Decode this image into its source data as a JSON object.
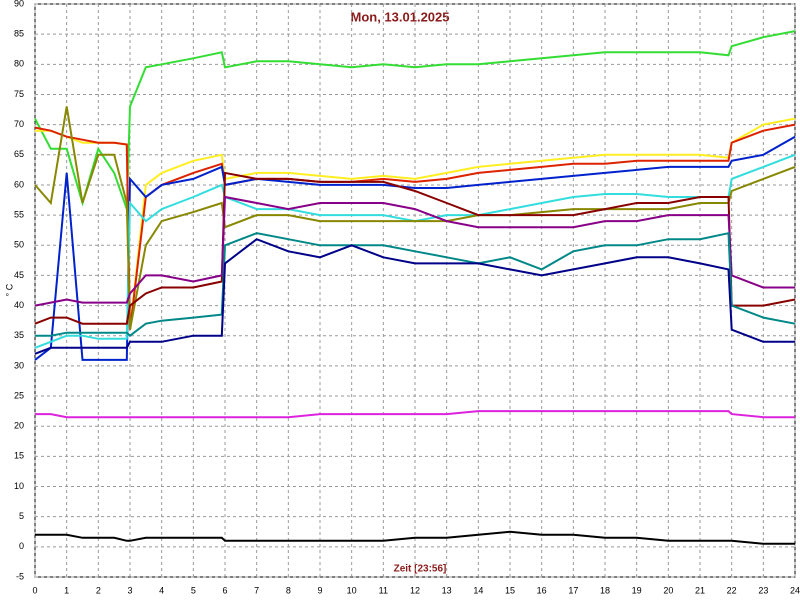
{
  "chart_data": {
    "type": "line",
    "title": "Mon, 13.01.2025",
    "y_label": "° C",
    "x_label": "Zeit [23:56]",
    "x": [
      0,
      0.5,
      1,
      1.5,
      2,
      2.5,
      2.9,
      3,
      3.5,
      4,
      5,
      5.9,
      6,
      7,
      8,
      9,
      10,
      11,
      12,
      13,
      14,
      15,
      16,
      17,
      18,
      19,
      20,
      21,
      21.9,
      22,
      23,
      24
    ],
    "series": [
      {
        "color": "#33dd33",
        "values": [
          71,
          66,
          66,
          57,
          66,
          62,
          56,
          73,
          79.5,
          80,
          81,
          82,
          79.5,
          80.5,
          80.5,
          80,
          79.5,
          80,
          79.5,
          80,
          80,
          80.5,
          81,
          81.5,
          82,
          82,
          82,
          82,
          81.5,
          83,
          84.5,
          85.5
        ]
      },
      {
        "color": "#ffee22",
        "values": [
          69,
          69,
          68,
          67,
          67,
          67,
          66.7,
          36,
          60,
          62,
          64,
          65,
          61,
          62,
          62,
          61.5,
          61,
          61.5,
          61,
          62,
          63,
          63.5,
          64,
          64.5,
          65,
          65,
          65,
          65,
          64.5,
          67,
          70,
          71
        ]
      },
      {
        "color": "#dd2200",
        "values": [
          69.5,
          69,
          68,
          67.5,
          67,
          67,
          66.7,
          36,
          58,
          60,
          62,
          63.5,
          60,
          61,
          61,
          60.5,
          60.5,
          61,
          60.5,
          61,
          62,
          62.5,
          63,
          63.5,
          63.5,
          64,
          64,
          64,
          64,
          67,
          69,
          70
        ]
      },
      {
        "color": "#0022cc",
        "values": [
          31,
          33,
          62,
          31,
          31,
          31,
          31,
          61,
          58,
          60,
          61,
          63,
          60,
          61,
          60.5,
          60,
          60,
          60,
          59.5,
          59.5,
          60,
          60.5,
          61,
          61.5,
          62,
          62.5,
          63,
          63,
          63,
          64,
          65,
          68
        ]
      },
      {
        "color": "#33dddd",
        "values": [
          33,
          34,
          35,
          35,
          34.5,
          34.5,
          34.5,
          57,
          54,
          56,
          58,
          60,
          58,
          56,
          56,
          55,
          55,
          55,
          54,
          55,
          55,
          56,
          57,
          58,
          58.5,
          58.5,
          58,
          58,
          58,
          61,
          63,
          65
        ]
      },
      {
        "color": "#888800",
        "values": [
          60,
          57,
          73,
          57,
          65,
          65,
          57,
          36,
          50,
          54,
          55.5,
          57,
          53,
          55,
          55,
          54,
          54,
          54,
          54,
          54,
          55,
          55,
          55.5,
          56,
          56,
          56,
          56,
          57,
          57,
          59,
          61,
          63
        ]
      },
      {
        "color": "#880000",
        "values": [
          37,
          38,
          38,
          37,
          37,
          37,
          37,
          40,
          42,
          43,
          43,
          44,
          62,
          61,
          61,
          60.5,
          60.5,
          60.5,
          59,
          57,
          55,
          55,
          55,
          55,
          56,
          57,
          57,
          58,
          58,
          40,
          40,
          41
        ]
      },
      {
        "color": "#880088",
        "values": [
          40,
          40.5,
          41,
          40.5,
          40.5,
          40.5,
          40.5,
          42,
          45,
          45,
          44,
          45,
          58,
          57,
          56,
          57,
          57,
          57,
          56,
          54,
          53,
          53,
          53,
          53,
          54,
          54,
          55,
          55,
          55,
          45,
          43,
          43
        ]
      },
      {
        "color": "#008888",
        "values": [
          35,
          35,
          35.5,
          35.5,
          35.5,
          35.5,
          35.5,
          35,
          37,
          37.5,
          38,
          38.5,
          50,
          52,
          51,
          50,
          50,
          50,
          49,
          48,
          47,
          48,
          46,
          49,
          50,
          50,
          51,
          51,
          52,
          40,
          38,
          37
        ]
      },
      {
        "color": "#000088",
        "values": [
          32,
          33,
          33,
          33,
          33,
          33,
          33,
          34,
          34,
          34,
          35,
          35,
          47,
          51,
          49,
          48,
          50,
          48,
          47,
          47,
          47,
          46,
          45,
          46,
          47,
          48,
          48,
          47,
          46,
          36,
          34,
          34
        ]
      },
      {
        "color": "#dd22dd",
        "values": [
          22,
          22,
          21.5,
          21.5,
          21.5,
          21.5,
          21.5,
          21.5,
          21.5,
          21.5,
          21.5,
          21.5,
          21.5,
          21.5,
          21.5,
          22,
          22,
          22,
          22,
          22,
          22.5,
          22.5,
          22.5,
          22.5,
          22.5,
          22.5,
          22.5,
          22.5,
          22.5,
          22,
          21.5,
          21.5
        ]
      },
      {
        "color": "#000000",
        "values": [
          2,
          2,
          2,
          1.5,
          1.5,
          1.5,
          1,
          1,
          1.5,
          1.5,
          1.5,
          1.5,
          1,
          1,
          1,
          1,
          1,
          1,
          1.5,
          1.5,
          2,
          2.5,
          2,
          2,
          1.5,
          1.5,
          1,
          1,
          1,
          1,
          0.5,
          0.5
        ]
      }
    ],
    "xlim": [
      0,
      24
    ],
    "xticks": [
      0,
      1,
      2,
      3,
      4,
      5,
      6,
      7,
      8,
      9,
      10,
      11,
      12,
      13,
      14,
      15,
      16,
      17,
      18,
      19,
      20,
      21,
      22,
      23,
      24
    ],
    "ylim": [
      -5,
      90
    ],
    "yticks": [
      -5,
      0,
      5,
      10,
      15,
      20,
      25,
      30,
      35,
      40,
      45,
      50,
      55,
      60,
      65,
      70,
      75,
      80,
      85,
      90
    ],
    "grid": true
  }
}
